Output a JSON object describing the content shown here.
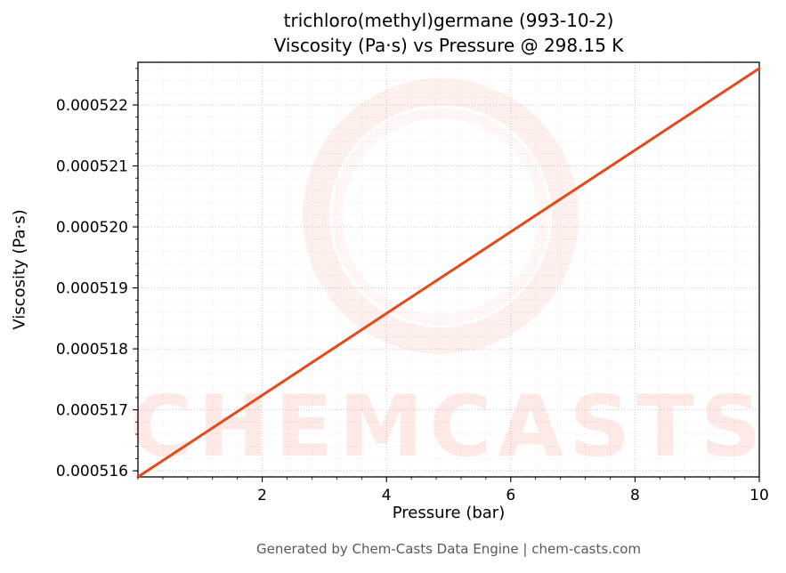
{
  "chart": {
    "title_line1": "trichloro(methyl)germane (993-10-2)",
    "title_line2": "Viscosity (Pa·s) vs Pressure @ 298.15 K",
    "xlabel": "Pressure (bar)",
    "ylabel": "Viscosity (Pa·s)"
  },
  "watermark": {
    "text": "CHEMCASTS",
    "color": "#ee5a3c"
  },
  "footer": {
    "text": "Generated by Chem-Casts Data Engine | chem-casts.com"
  },
  "chart_data": {
    "type": "line",
    "title": "trichloro(methyl)germane (993-10-2) — Viscosity (Pa·s) vs Pressure @ 298.15 K",
    "xlabel": "Pressure (bar)",
    "ylabel": "Viscosity (Pa·s)",
    "xlim": [
      0,
      10
    ],
    "ylim": [
      0.0005159,
      0.0005227
    ],
    "xticks": [
      2,
      4,
      6,
      8,
      10
    ],
    "xtick_labels": [
      "2",
      "4",
      "6",
      "8",
      "10"
    ],
    "yticks": [
      0.000516,
      0.000517,
      0.000518,
      0.000519,
      0.00052,
      0.000521,
      0.000522
    ],
    "ytick_labels": [
      "0.000516",
      "0.000517",
      "0.000518",
      "0.000519",
      "0.000520",
      "0.000521",
      "0.000522"
    ],
    "x_minor_step": 0.4,
    "y_minor_step": 2e-07,
    "grid": true,
    "legend": false,
    "line_color": "#e2491b",
    "series": [
      {
        "name": "viscosity",
        "x": [
          0,
          1,
          2,
          3,
          4,
          5,
          6,
          7,
          8,
          9,
          10
        ],
        "y": [
          0.0005159,
          0.00051657,
          0.00051724,
          0.00051791,
          0.00051858,
          0.00051925,
          0.00051992,
          0.00052059,
          0.00052126,
          0.00052193,
          0.0005226
        ]
      }
    ]
  }
}
